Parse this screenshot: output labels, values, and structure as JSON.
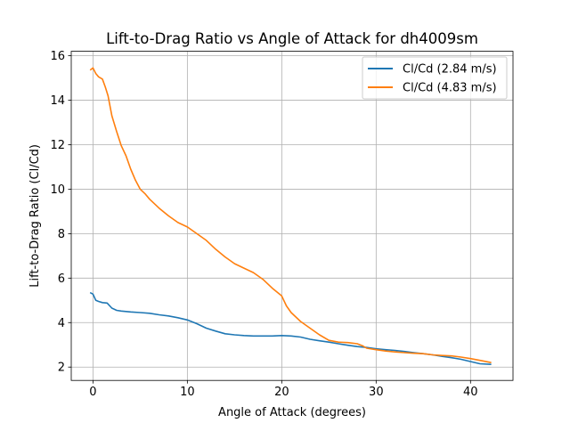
{
  "chart_data": {
    "type": "line",
    "title": "Lift-to-Drag Ratio vs Angle of Attack for dh4009sm",
    "xlabel": "Angle of Attack (degrees)",
    "ylabel": "Lift-to-Drag Ratio (Cl/Cd)",
    "xlim": [
      -2.3,
      44.5
    ],
    "ylim": [
      1.4,
      16.2
    ],
    "xticks": [
      0,
      10,
      20,
      30,
      40
    ],
    "yticks": [
      2,
      4,
      6,
      8,
      10,
      12,
      14,
      16
    ],
    "grid": true,
    "legend_position": "top-right",
    "series": [
      {
        "name": "Cl/Cd (2.84 m/s)",
        "color": "#1f77b4",
        "x": [
          -0.3,
          0.0,
          0.3,
          0.6,
          1.0,
          1.5,
          2.0,
          2.5,
          3.0,
          4.0,
          5.0,
          6.0,
          7.0,
          8.0,
          9.0,
          10.0,
          11.0,
          12.0,
          13.0,
          14.0,
          15.0,
          16.0,
          17.0,
          18.0,
          19.0,
          20.0,
          21.0,
          22.0,
          23.0,
          24.0,
          25.0,
          26.0,
          27.0,
          28.0,
          29.0,
          30.0,
          31.0,
          32.0,
          33.0,
          34.0,
          35.0,
          36.0,
          37.0,
          38.0,
          39.0,
          40.0,
          41.0,
          42.2
        ],
        "y": [
          5.35,
          5.28,
          5.0,
          4.95,
          4.9,
          4.88,
          4.65,
          4.55,
          4.52,
          4.48,
          4.45,
          4.42,
          4.35,
          4.3,
          4.22,
          4.12,
          3.95,
          3.75,
          3.62,
          3.5,
          3.45,
          3.42,
          3.4,
          3.4,
          3.4,
          3.42,
          3.4,
          3.35,
          3.25,
          3.18,
          3.12,
          3.05,
          2.98,
          2.92,
          2.88,
          2.82,
          2.78,
          2.75,
          2.7,
          2.65,
          2.6,
          2.55,
          2.48,
          2.42,
          2.35,
          2.25,
          2.15,
          2.12
        ]
      },
      {
        "name": "Cl/Cd (4.83 m/s)",
        "color": "#ff7f0e",
        "x": [
          -0.3,
          0.0,
          0.3,
          0.6,
          1.0,
          1.3,
          1.6,
          2.0,
          2.5,
          3.0,
          3.5,
          4.0,
          4.5,
          5.0,
          5.5,
          6.0,
          7.0,
          8.0,
          9.0,
          10.0,
          11.0,
          12.0,
          13.0,
          14.0,
          15.0,
          16.0,
          17.0,
          18.0,
          19.0,
          20.0,
          20.5,
          21.0,
          22.0,
          23.0,
          24.0,
          25.0,
          26.0,
          27.0,
          28.0,
          28.6,
          29.0,
          30.0,
          31.0,
          32.0,
          33.0,
          34.0,
          35.0,
          36.0,
          37.0,
          38.0,
          39.0,
          40.0,
          41.0,
          42.2
        ],
        "y": [
          15.35,
          15.45,
          15.2,
          15.05,
          14.95,
          14.6,
          14.2,
          13.3,
          12.6,
          11.95,
          11.5,
          10.9,
          10.4,
          10.0,
          9.8,
          9.55,
          9.15,
          8.8,
          8.5,
          8.3,
          8.0,
          7.7,
          7.3,
          6.95,
          6.65,
          6.45,
          6.25,
          5.95,
          5.55,
          5.2,
          4.75,
          4.45,
          4.05,
          3.75,
          3.45,
          3.2,
          3.12,
          3.1,
          3.05,
          2.95,
          2.85,
          2.78,
          2.72,
          2.68,
          2.65,
          2.62,
          2.6,
          2.55,
          2.52,
          2.5,
          2.45,
          2.38,
          2.3,
          2.2
        ]
      }
    ]
  }
}
